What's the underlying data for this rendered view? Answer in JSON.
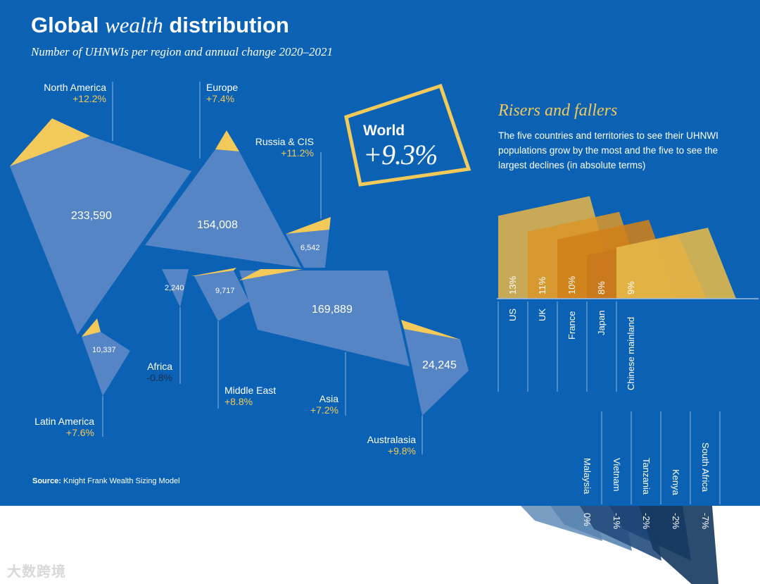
{
  "chart_data": {
    "type": "bar",
    "title_part1": "Global",
    "title_part2": "wealth",
    "title_part3": "distribution",
    "subtitle": "Number of UHNWIs per region and annual change 2020–2021",
    "regions": [
      {
        "name": "North America",
        "value": 233590,
        "value_label": "233,590",
        "change": "+12.2%"
      },
      {
        "name": "Europe",
        "value": 154008,
        "value_label": "154,008",
        "change": "+7.4%"
      },
      {
        "name": "Russia & CIS",
        "value": 6542,
        "value_label": "6,542",
        "change": "+11.2%"
      },
      {
        "name": "Latin America",
        "value": 10337,
        "value_label": "10,337",
        "change": "+7.6%"
      },
      {
        "name": "Africa",
        "value": 2240,
        "value_label": "2,240",
        "change": "-0.8%"
      },
      {
        "name": "Middle East",
        "value": 9717,
        "value_label": "9,717",
        "change": "+8.8%"
      },
      {
        "name": "Asia",
        "value": 169889,
        "value_label": "169,889",
        "change": "+7.2%"
      },
      {
        "name": "Australasia",
        "value": 24245,
        "value_label": "24,245",
        "change": "+9.8%"
      }
    ],
    "world": {
      "label": "World",
      "change": "+9.3%"
    },
    "source_label": "Source:",
    "source_text": "Knight Frank Wealth Sizing Model",
    "risers_title": "Risers and fallers",
    "risers_description": "The five countries and territories to see their UHNWI populations grow by the most and the five to see the largest declines (in absolute terms)",
    "risers": [
      {
        "country": "US",
        "value": 13,
        "label": "13%"
      },
      {
        "country": "UK",
        "value": 11,
        "label": "11%"
      },
      {
        "country": "France",
        "value": 10,
        "label": "10%"
      },
      {
        "country": "Japan",
        "value": 8,
        "label": "8%"
      },
      {
        "country": "Chinese mainland",
        "value": 9,
        "label": "9%"
      }
    ],
    "fallers": [
      {
        "country": "Malaysia",
        "value": 0,
        "label": "0%"
      },
      {
        "country": "Vietnam",
        "value": -1,
        "label": "-1%"
      },
      {
        "country": "Tanzania",
        "value": -2,
        "label": "-2%"
      },
      {
        "country": "Kenya",
        "value": -2,
        "label": "-2%"
      },
      {
        "country": "South Africa",
        "value": -7,
        "label": "-7%"
      }
    ],
    "colors": {
      "background": "#0b62b4",
      "region_fill": "#5585c5",
      "gold": "#f3c95a",
      "riser_fills": [
        "#e2b34a",
        "#d8962a",
        "#d07f1a",
        "#c8791e",
        "#e6b94a"
      ],
      "faller_fills": [
        "#6b93bd",
        "#5a85b2",
        "#234d7d",
        "#1d4474",
        "#15395f"
      ]
    },
    "watermark": "大数跨境"
  }
}
